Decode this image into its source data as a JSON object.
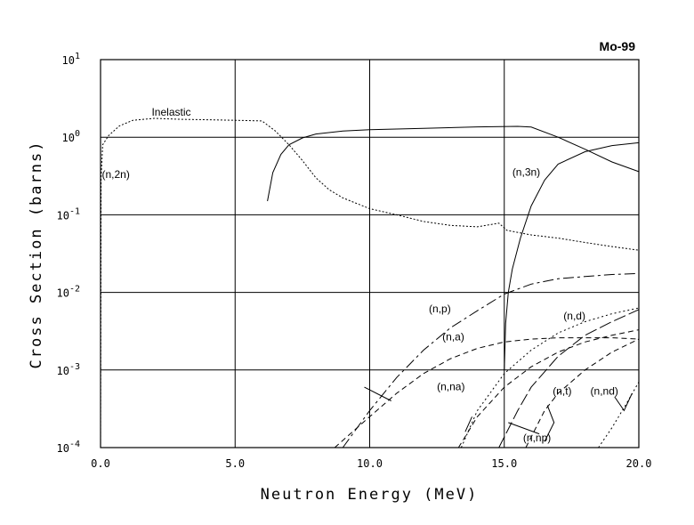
{
  "chart_data": {
    "type": "line",
    "title": "Mo-99",
    "xlabel": "Neutron Energy (MeV)",
    "ylabel": "Cross Section (barns)",
    "xlim": [
      0,
      20
    ],
    "ylim_log10": [
      -4,
      1
    ],
    "x_scale": "linear",
    "y_scale": "log",
    "grid": true,
    "x_ticks": [
      {
        "value": 0,
        "label": "0.0"
      },
      {
        "value": 5,
        "label": "5.0"
      },
      {
        "value": 10,
        "label": "10.0"
      },
      {
        "value": 15,
        "label": "15.0"
      },
      {
        "value": 20,
        "label": "20.0"
      }
    ],
    "y_ticks": [
      {
        "exp": 1,
        "base": "10",
        "power": "1"
      },
      {
        "exp": 0,
        "base": "10",
        "power": "0"
      },
      {
        "exp": -1,
        "base": "10",
        "power": "-1"
      },
      {
        "exp": -2,
        "base": "10",
        "power": "-2"
      },
      {
        "exp": -3,
        "base": "10",
        "power": "-3"
      },
      {
        "exp": -4,
        "base": "10",
        "power": "-4"
      }
    ],
    "series": [
      {
        "name": "Inelastic",
        "dash": "2,2",
        "points": [
          [
            0,
            0.0001
          ],
          [
            0.02,
            0.3
          ],
          [
            0.08,
            0.8
          ],
          [
            0.3,
            1.05
          ],
          [
            0.7,
            1.4
          ],
          [
            1.2,
            1.65
          ],
          [
            2,
            1.75
          ],
          [
            3,
            1.7
          ],
          [
            4,
            1.68
          ],
          [
            5,
            1.65
          ],
          [
            6,
            1.62
          ],
          [
            6.5,
            1.2
          ],
          [
            7,
            0.8
          ],
          [
            7.5,
            0.5
          ],
          [
            8,
            0.3
          ],
          [
            8.5,
            0.21
          ],
          [
            9,
            0.165
          ],
          [
            10,
            0.12
          ],
          [
            11,
            0.1
          ],
          [
            12,
            0.082
          ],
          [
            13,
            0.073
          ],
          [
            14,
            0.07
          ],
          [
            14.8,
            0.078
          ],
          [
            15.1,
            0.063
          ],
          [
            16,
            0.055
          ],
          [
            17,
            0.05
          ],
          [
            18,
            0.044
          ],
          [
            19,
            0.039
          ],
          [
            20,
            0.035
          ]
        ]
      },
      {
        "name": "(n,2n)",
        "dash": "",
        "points": [
          [
            6.2,
            0.15
          ],
          [
            6.4,
            0.35
          ],
          [
            6.7,
            0.6
          ],
          [
            7,
            0.8
          ],
          [
            7.5,
            0.98
          ],
          [
            8,
            1.1
          ],
          [
            9,
            1.2
          ],
          [
            10,
            1.25
          ],
          [
            12,
            1.3
          ],
          [
            14,
            1.36
          ],
          [
            15.5,
            1.38
          ],
          [
            16,
            1.35
          ],
          [
            17,
            1.0
          ],
          [
            18,
            0.7
          ],
          [
            19,
            0.48
          ],
          [
            20,
            0.36
          ]
        ]
      },
      {
        "name": "(n,3n)",
        "dash": "",
        "points": [
          [
            15,
            0.001
          ],
          [
            15.05,
            0.004
          ],
          [
            15.15,
            0.01
          ],
          [
            15.3,
            0.02
          ],
          [
            15.6,
            0.05
          ],
          [
            16,
            0.13
          ],
          [
            16.5,
            0.28
          ],
          [
            17,
            0.45
          ],
          [
            18,
            0.65
          ],
          [
            19,
            0.78
          ],
          [
            20,
            0.85
          ]
        ]
      },
      {
        "name": "(n,p)",
        "dash": "12,4,3,4",
        "points": [
          [
            9,
            0.0001
          ],
          [
            10,
            0.0003
          ],
          [
            11,
            0.0008
          ],
          [
            12,
            0.0018
          ],
          [
            13,
            0.0035
          ],
          [
            14,
            0.0058
          ],
          [
            15,
            0.0095
          ],
          [
            16,
            0.0128
          ],
          [
            17,
            0.015
          ],
          [
            18,
            0.016
          ],
          [
            19,
            0.017
          ],
          [
            20,
            0.0175
          ]
        ]
      },
      {
        "name": "(n,a)",
        "dash": "6,4",
        "points": [
          [
            8.7,
            0.0001
          ],
          [
            10,
            0.00025
          ],
          [
            11,
            0.0005
          ],
          [
            12,
            0.0009
          ],
          [
            13,
            0.0014
          ],
          [
            14,
            0.0019
          ],
          [
            15,
            0.0023
          ],
          [
            16,
            0.0025
          ],
          [
            17,
            0.0026
          ],
          [
            18,
            0.0026
          ],
          [
            19,
            0.0026
          ],
          [
            20,
            0.0025
          ]
        ]
      },
      {
        "name": "(n,d)",
        "dash": "14,4",
        "points": [
          [
            14.8,
            0.0001
          ],
          [
            15.5,
            0.0003
          ],
          [
            16,
            0.0006
          ],
          [
            17,
            0.0015
          ],
          [
            18,
            0.0028
          ],
          [
            19,
            0.0042
          ],
          [
            20,
            0.006
          ]
        ]
      },
      {
        "name": "(n,na)",
        "dash": "2,3",
        "points": [
          [
            13.4,
            0.0001
          ],
          [
            14,
            0.0003
          ],
          [
            15,
            0.0009
          ],
          [
            16,
            0.0018
          ],
          [
            17,
            0.003
          ],
          [
            18,
            0.0042
          ],
          [
            19,
            0.0053
          ],
          [
            20,
            0.0063
          ]
        ]
      },
      {
        "name": "(n,t)",
        "dash": "6,4",
        "points": [
          [
            15.8,
            0.0001
          ],
          [
            16.5,
            0.0003
          ],
          [
            17,
            0.0005
          ],
          [
            18,
            0.001
          ],
          [
            19,
            0.0017
          ],
          [
            20,
            0.0025
          ]
        ]
      },
      {
        "name": "(n,np)",
        "dash": "6,4",
        "points": [
          [
            13.3,
            0.0001
          ],
          [
            14,
            0.00025
          ],
          [
            15,
            0.0006
          ],
          [
            16,
            0.0011
          ],
          [
            17,
            0.0017
          ],
          [
            18,
            0.0023
          ],
          [
            19,
            0.0028
          ],
          [
            20,
            0.0033
          ]
        ]
      },
      {
        "name": "(n,nd)",
        "dash": "2,3",
        "points": [
          [
            18.5,
            0.0001
          ],
          [
            19,
            0.00018
          ],
          [
            19.5,
            0.00035
          ],
          [
            20,
            0.0007
          ]
        ]
      }
    ],
    "annotations": [
      {
        "text": "Inelastic",
        "x": 1.9,
        "y": 1.9
      },
      {
        "text": "(n,2n)",
        "x": 0.05,
        "y": 0.3
      },
      {
        "text": "(n,3n)",
        "x": 15.3,
        "y": 0.32
      },
      {
        "text": "(n,p)",
        "x": 12.2,
        "y": 0.0055
      },
      {
        "text": "(n,a)",
        "x": 12.7,
        "y": 0.0024
      },
      {
        "text": "(n,d)",
        "x": 17.2,
        "y": 0.0045
      },
      {
        "text": "(n,na)",
        "x": 12.5,
        "y": 0.00055
      },
      {
        "text": "(n,t)",
        "x": 16.8,
        "y": 0.00048
      },
      {
        "text": "(n,nd)",
        "x": 18.2,
        "y": 0.00048
      },
      {
        "text": "(n,np)",
        "x": 15.7,
        "y": 0.00012
      }
    ]
  }
}
